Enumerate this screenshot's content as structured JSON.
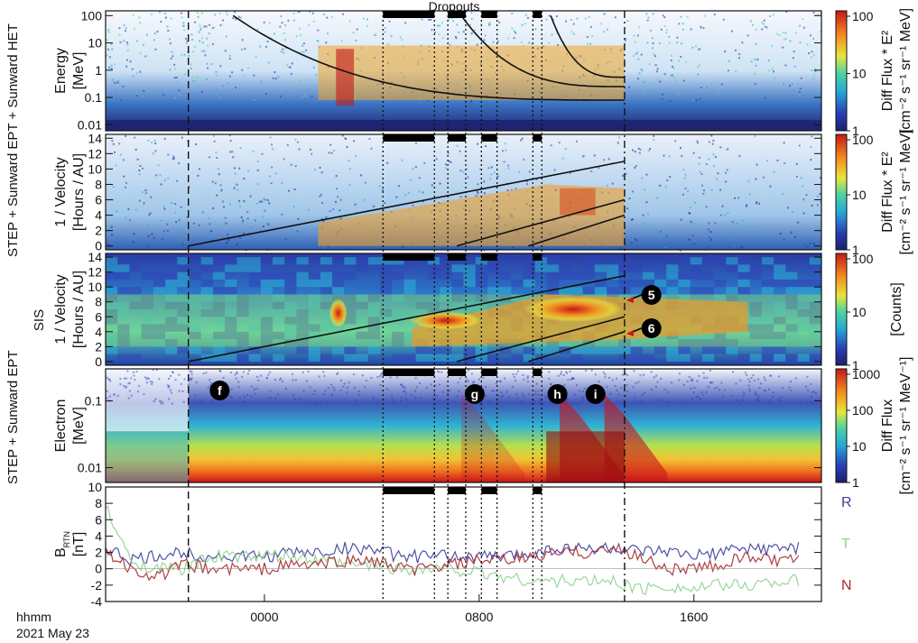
{
  "title": "Dropouts",
  "x_axis": {
    "unit_label": "hhmm",
    "date": "2021 May 23",
    "ticks": [
      "0000",
      "0800",
      "1600"
    ]
  },
  "markers": [
    "f",
    "g",
    "h",
    "i",
    "5",
    "6"
  ],
  "side_labels": {
    "left_top": "STEP + Sunward EPT + Sunward HET",
    "left_sis": "SIS",
    "left_electron": "STEP + Sunward EPT"
  },
  "panels": [
    {
      "id": "energy",
      "ylabel": [
        "Energy",
        "[MeV]"
      ],
      "yticks": [
        "100",
        "10",
        "1",
        "0.1",
        "0.01"
      ],
      "colorbar": {
        "label": [
          "Diff Flux * E²",
          "[cm⁻² s⁻¹ sr⁻¹ MeV]"
        ],
        "ticks": [
          "100",
          "10",
          "1"
        ]
      }
    },
    {
      "id": "velocity",
      "ylabel": [
        "1 / Velocity",
        "[Hours / AU]"
      ],
      "yticks": [
        "14",
        "12",
        "10",
        "8",
        "6",
        "4",
        "2",
        "0"
      ],
      "colorbar": {
        "label": [
          "Diff Flux * E²",
          "[cm⁻² s⁻¹ sr⁻¹ MeV]"
        ],
        "ticks": [
          "100",
          "10",
          "1"
        ]
      }
    },
    {
      "id": "sis",
      "ylabel": [
        "1 / Velocity",
        "[Hours / AU]"
      ],
      "yticks": [
        "14",
        "12",
        "10",
        "8",
        "6",
        "4",
        "2",
        "0"
      ],
      "colorbar": {
        "label": [
          "[Counts]"
        ],
        "ticks": [
          "100",
          "10",
          "1"
        ]
      }
    },
    {
      "id": "electron",
      "ylabel": [
        "Electron",
        "[MeV]"
      ],
      "yticks": [
        "0.1",
        "0.01"
      ],
      "colorbar": {
        "label": [
          "Diff Flux",
          "[cm⁻² s⁻¹ sr⁻¹ MeV⁻¹]"
        ],
        "ticks": [
          "1000",
          "100",
          "10",
          "1"
        ]
      }
    },
    {
      "id": "brtn",
      "ylabel": [
        "B",
        "[nT]"
      ],
      "ylabel_sub": "RTN",
      "yticks": [
        "10",
        "8",
        "6",
        "4",
        "2",
        "0",
        "-2",
        "-4"
      ],
      "legend": [
        {
          "name": "R",
          "color": "#3b3f9c"
        },
        {
          "name": "T",
          "color": "#8fd28f"
        },
        {
          "name": "N",
          "color": "#a5282b"
        }
      ]
    }
  ],
  "chart_data": {
    "type": "heatmap",
    "title": "Dropouts",
    "x": {
      "type": "time",
      "start": "2021-05-22 18:05",
      "end": "2021-05-23 20:45",
      "ticks": [
        "0000",
        "0800",
        "1600"
      ],
      "label": "hhmm 2021 May 23"
    },
    "event_onset": "2021-05-22 21:10",
    "end_line": "2021-05-23 13:25",
    "dropouts": [
      {
        "start": "2021-05-23 04:25",
        "end": "2021-05-23 06:20"
      },
      {
        "start": "2021-05-23 06:50",
        "end": "2021-05-23 07:30"
      },
      {
        "start": "2021-05-23 08:05",
        "end": "2021-05-23 08:40"
      },
      {
        "start": "2021-05-23 10:00",
        "end": "2021-05-23 10:20"
      }
    ],
    "brtn": {
      "times": [
        "2021-05-22 18:05",
        "2021-05-22 19:00",
        "2021-05-22 20:00",
        "2021-05-22 21:00",
        "2021-05-22 22:00",
        "2021-05-22 23:00",
        "2021-05-23 00:00",
        "2021-05-23 01:00",
        "2021-05-23 02:00",
        "2021-05-23 03:00",
        "2021-05-23 04:00",
        "2021-05-23 05:00",
        "2021-05-23 06:00",
        "2021-05-23 07:00",
        "2021-05-23 08:00",
        "2021-05-23 09:00",
        "2021-05-23 10:00",
        "2021-05-23 11:00",
        "2021-05-23 12:00",
        "2021-05-23 13:00",
        "2021-05-23 14:00",
        "2021-05-23 15:00",
        "2021-05-23 16:00",
        "2021-05-23 17:00",
        "2021-05-23 18:00",
        "2021-05-23 19:00",
        "2021-05-23 20:00"
      ],
      "series": [
        {
          "name": "R",
          "values": [
            2.5,
            1,
            1.5,
            2,
            1.5,
            1.5,
            1.5,
            2,
            2,
            2.5,
            2.5,
            1.5,
            1.5,
            1.5,
            1.5,
            1.5,
            2,
            2.5,
            2.5,
            2.5,
            2,
            2,
            1.5,
            2,
            2.5,
            2.5,
            2.5
          ]
        },
        {
          "name": "T",
          "values": [
            7.5,
            1,
            0,
            0,
            1.5,
            1.5,
            1.5,
            1.5,
            1,
            0.5,
            0.5,
            0,
            0,
            0,
            -0.5,
            -1,
            -1.5,
            -1.5,
            -1.5,
            -1.5,
            -2.5,
            -2,
            -2.5,
            -2,
            -2,
            -1.5,
            -1.5
          ]
        },
        {
          "name": "N",
          "values": [
            2,
            0,
            -1,
            0.5,
            0,
            0,
            0,
            0.5,
            0.5,
            1,
            1,
            0,
            0,
            0.5,
            1,
            1,
            1.5,
            2,
            2,
            2.5,
            1.5,
            0,
            0,
            0.5,
            1.5,
            1,
            1
          ]
        }
      ],
      "ylim": [
        -4,
        10
      ]
    },
    "velocity_dispersion_lines": [
      {
        "x0": "2021-05-22 21:10",
        "x1": "2021-05-23 13:25",
        "y0": 0,
        "y1": 11
      },
      {
        "x0": "2021-05-23 07:10",
        "x1": "2021-05-23 13:25",
        "y0": 0,
        "y1": 6
      },
      {
        "x0": "2021-05-23 09:50",
        "x1": "2021-05-23 13:25",
        "y0": 0,
        "y1": 4
      }
    ],
    "sis_dispersion_lines": [
      {
        "x0": "2021-05-22 21:10",
        "x1": "2021-05-23 13:25",
        "y0": 0,
        "y1": 11.5
      },
      {
        "x0": "2021-05-23 07:10",
        "x1": "2021-05-23 13:25",
        "y0": 0,
        "y1": 6
      },
      {
        "x0": "2021-05-23 09:50",
        "x1": "2021-05-23 13:25",
        "y0": 0,
        "y1": 4
      }
    ],
    "energy_curves": [
      {
        "start": "2021-05-22 22:50",
        "end": "2021-05-23 13:25",
        "e_start": 100,
        "e_end": 0.08
      },
      {
        "start": "2021-05-23 07:20",
        "end": "2021-05-23 13:25",
        "e_start": 100,
        "e_end": 0.25
      },
      {
        "start": "2021-05-23 10:40",
        "end": "2021-05-23 13:25",
        "e_start": 100,
        "e_end": 0.55
      }
    ]
  }
}
